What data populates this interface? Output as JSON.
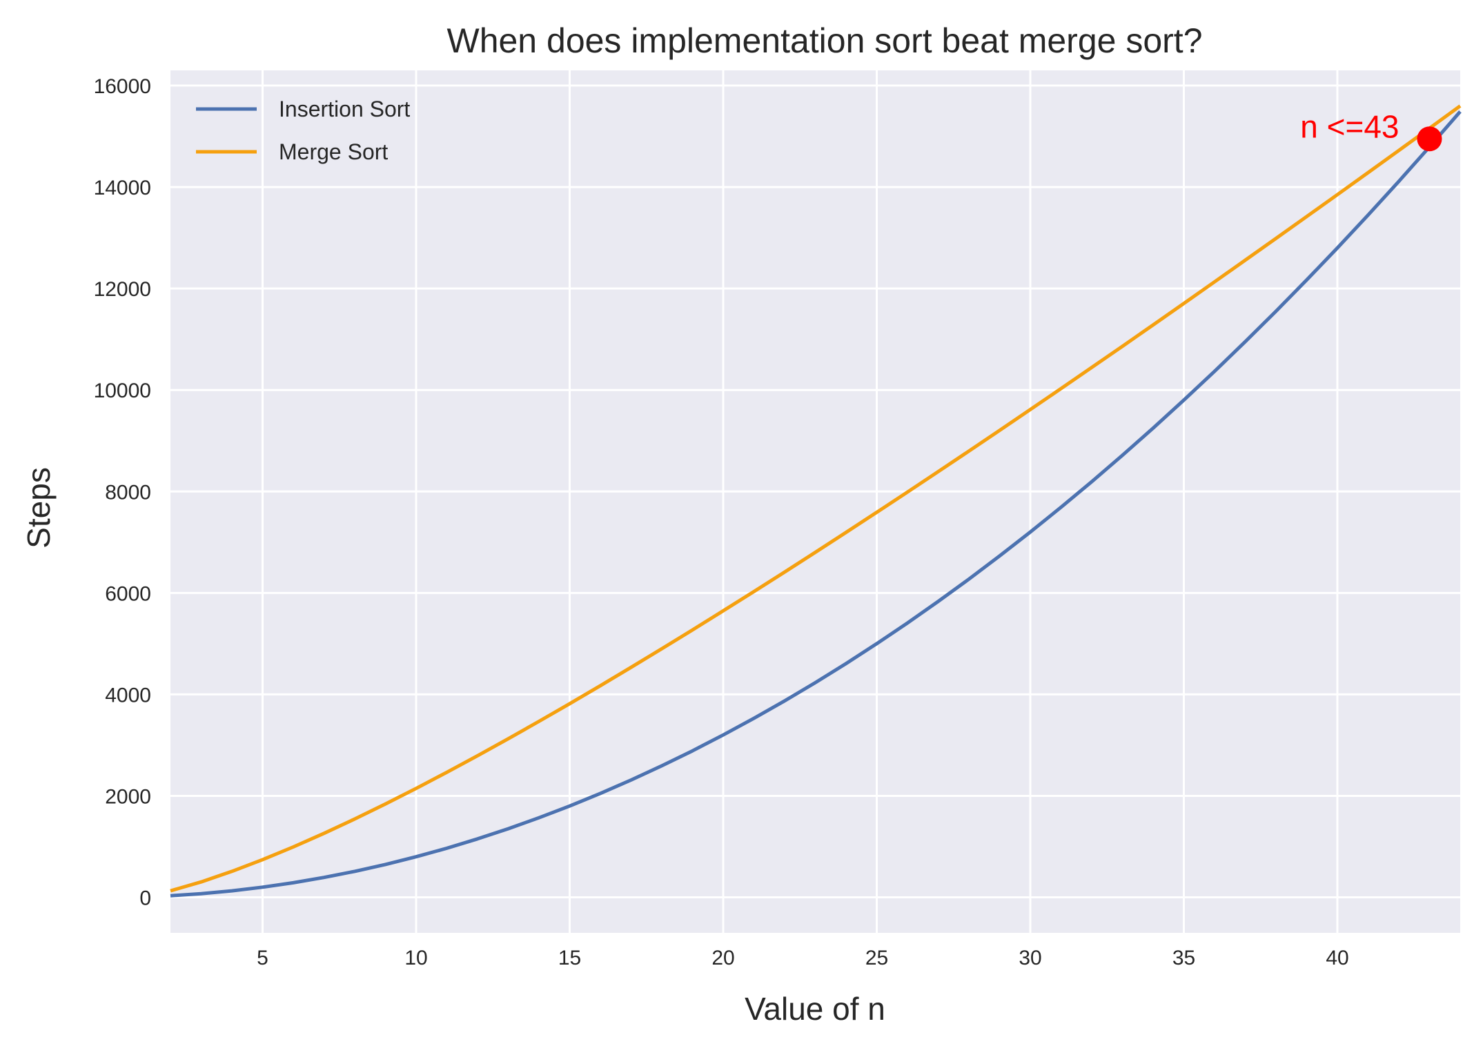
{
  "chart_data": {
    "type": "line",
    "title": "When does implementation sort beat merge sort?",
    "xlabel": "Value of n",
    "ylabel": "Steps",
    "xlim": [
      2,
      44
    ],
    "ylim": [
      -700,
      16300
    ],
    "xticks": [
      5,
      10,
      15,
      20,
      25,
      30,
      35,
      40
    ],
    "yticks": [
      0,
      2000,
      4000,
      6000,
      8000,
      10000,
      12000,
      14000,
      16000
    ],
    "grid": true,
    "legend_position": "top-left",
    "background_color": "#eaeaf2",
    "grid_color": "#ffffff",
    "x": [
      2,
      3,
      4,
      5,
      6,
      7,
      8,
      9,
      10,
      11,
      12,
      13,
      14,
      15,
      16,
      17,
      18,
      19,
      20,
      21,
      22,
      23,
      24,
      25,
      26,
      27,
      28,
      29,
      30,
      31,
      32,
      33,
      34,
      35,
      36,
      37,
      38,
      39,
      40,
      41,
      42,
      43,
      44
    ],
    "series": [
      {
        "name": "Insertion Sort",
        "color": "#4c72b0",
        "values": [
          32,
          72,
          128,
          200,
          288,
          392,
          512,
          648,
          800,
          968,
          1152,
          1352,
          1568,
          1800,
          2048,
          2312,
          2592,
          2888,
          3200,
          3528,
          3872,
          4232,
          4608,
          5000,
          5408,
          5832,
          6272,
          6728,
          7200,
          7688,
          8192,
          8712,
          9248,
          9800,
          10368,
          10952,
          11552,
          12168,
          12800,
          13448,
          14112,
          14792,
          15488
        ]
      },
      {
        "name": "Merge Sort",
        "color": "#f5a00f",
        "values": [
          128,
          304,
          512,
          743,
          993,
          1261,
          1544,
          1840,
          2147,
          2465,
          2791,
          3126,
          3468,
          3817,
          4172,
          4533,
          4900,
          5271,
          5647,
          6027,
          6412,
          6801,
          7193,
          7589,
          7988,
          8390,
          8795,
          9203,
          9614,
          10028,
          10444,
          10862,
          11283,
          11706,
          12131,
          12558,
          12987,
          13418,
          13850,
          14285,
          14721,
          15159,
          15599
        ]
      }
    ],
    "annotation": {
      "text": "n <=43",
      "x": 43,
      "y": 14950,
      "color": "#ff0000"
    }
  }
}
